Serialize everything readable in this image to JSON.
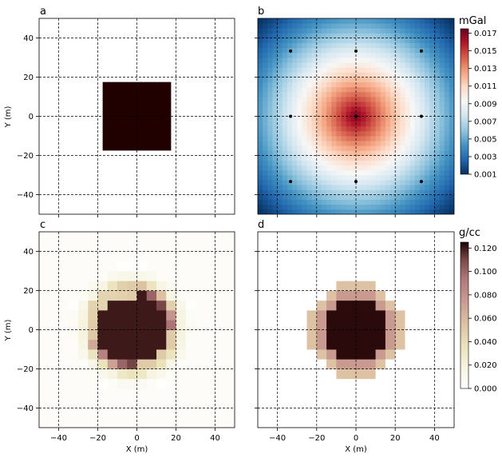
{
  "chart_data": [
    {
      "panel": "a",
      "type": "heatmap",
      "title": "a",
      "xlabel": "",
      "ylabel": "Y (m)",
      "xlim": [
        -50,
        50
      ],
      "ylim": [
        -50,
        50
      ],
      "xticks": [
        -40,
        -20,
        0,
        20,
        40
      ],
      "yticks": [
        40,
        20,
        0,
        -20,
        -40
      ],
      "show_xticklabels": false,
      "show_yticklabels": true,
      "grid": true,
      "block": {
        "xmin": -17.5,
        "xmax": 17.5,
        "ymin": -17.5,
        "ymax": 17.5,
        "color": "#210000"
      }
    },
    {
      "panel": "b",
      "type": "heatmap",
      "title": "b",
      "xlabel": "",
      "ylabel": "",
      "xlim": [
        -50,
        50
      ],
      "ylim": [
        -50,
        50
      ],
      "xticks": [
        -40,
        -20,
        0,
        20,
        40
      ],
      "yticks": [
        40,
        20,
        0,
        -20,
        -40
      ],
      "show_xticklabels": false,
      "show_yticklabels": false,
      "grid": true,
      "field": {
        "center": [
          0,
          0
        ],
        "peak": 0.017,
        "edge_min": 0.001
      },
      "stations": [
        [
          -33.3,
          33.3
        ],
        [
          0,
          33.3
        ],
        [
          33.3,
          33.3
        ],
        [
          -33.3,
          0
        ],
        [
          0,
          0
        ],
        [
          33.3,
          0
        ],
        [
          -33.3,
          -33.3
        ],
        [
          0,
          -33.3
        ],
        [
          33.3,
          -33.3
        ]
      ],
      "colorbar": {
        "unit": "mGal",
        "vmin": 0.001,
        "vmax": 0.0175,
        "ticks": [
          "0.017",
          "0.015",
          "0.013",
          "0.011",
          "0.009",
          "0.007",
          "0.005",
          "0.003",
          "0.001"
        ],
        "colormap": "RdBu_r"
      }
    },
    {
      "panel": "c",
      "type": "heatmap",
      "title": "c",
      "xlabel": "X (m)",
      "ylabel": "Y (m)",
      "xlim": [
        -50,
        50
      ],
      "ylim": [
        -50,
        50
      ],
      "xticks": [
        -40,
        -20,
        0,
        20,
        40
      ],
      "yticks": [
        40,
        20,
        0,
        -20,
        -40
      ],
      "xticklabels": [
        "−40",
        "−20",
        "0",
        "20",
        "40"
      ],
      "yticklabels": [
        "40",
        "20",
        "0",
        "−20",
        "−40"
      ],
      "show_xticklabels": true,
      "show_yticklabels": true,
      "grid": true,
      "model": "recovered"
    },
    {
      "panel": "d",
      "type": "heatmap",
      "title": "d",
      "xlabel": "X (m)",
      "ylabel": "",
      "xlim": [
        -50,
        50
      ],
      "ylim": [
        -50,
        50
      ],
      "xticks": [
        -40,
        -20,
        0,
        20,
        40
      ],
      "yticks": [
        40,
        20,
        0,
        -20,
        -40
      ],
      "xticklabels": [
        "−40",
        "−20",
        "0",
        "20",
        "40"
      ],
      "show_xticklabels": true,
      "show_yticklabels": false,
      "grid": true,
      "model": "sphere",
      "colorbar": {
        "unit": "g/cc",
        "vmin": 0.0,
        "vmax": 0.125,
        "ticks": [
          "0.120",
          "0.100",
          "0.080",
          "0.060",
          "0.040",
          "0.020",
          "0.000"
        ],
        "colormap": "pink_r"
      }
    }
  ],
  "labels": {
    "a": "a",
    "b": "b",
    "c": "c",
    "d": "d",
    "ylabel_a": "Y (m)",
    "ylabel_c": "Y (m)",
    "xlabel_c": "X (m)",
    "xlabel_d": "X (m)",
    "cb_b_unit": "mGal",
    "cb_d_unit": "g/cc"
  }
}
